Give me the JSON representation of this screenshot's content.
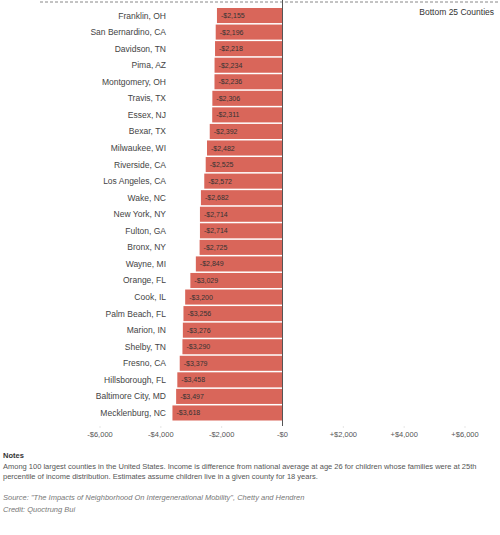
{
  "chart_data": {
    "type": "bar",
    "orientation": "horizontal",
    "title": "Bottom 25 Counties",
    "categories": [
      "Franklin, OH",
      "San Bernardino, CA",
      "Davidson, TN",
      "Pima, AZ",
      "Montgomery, OH",
      "Travis, TX",
      "Essex, NJ",
      "Bexar, TX",
      "Milwaukee, WI",
      "Riverside, CA",
      "Los Angeles, CA",
      "Wake, NC",
      "New York, NY",
      "Fulton, GA",
      "Bronx, NY",
      "Wayne, MI",
      "Orange, FL",
      "Cook, IL",
      "Palm Beach, FL",
      "Marion, IN",
      "Shelby, TN",
      "Fresno, CA",
      "Hillsborough, FL",
      "Baltimore City, MD",
      "Mecklenburg, NC"
    ],
    "values": [
      -2155,
      -2196,
      -2218,
      -2234,
      -2236,
      -2306,
      -2311,
      -2392,
      -2482,
      -2525,
      -2572,
      -2682,
      -2714,
      -2714,
      -2725,
      -2849,
      -3029,
      -3200,
      -3256,
      -3276,
      -3290,
      -3379,
      -3458,
      -3497,
      -3618
    ],
    "value_labels": [
      "-$2,155",
      "-$2,196",
      "-$2,218",
      "-$2,234",
      "-$2,236",
      "-$2,306",
      "-$2,311",
      "-$2,392",
      "-$2,482",
      "-$2,525",
      "-$2,572",
      "-$2,682",
      "-$2,714",
      "-$2,714",
      "-$2,725",
      "-$2,849",
      "-$3,029",
      "-$3,200",
      "-$3,256",
      "-$3,276",
      "-$3,290",
      "-$3,379",
      "-$3,458",
      "-$3,497",
      "-$3,618"
    ],
    "data_labels": true,
    "color": "#d9665a",
    "xlim": [
      -6000,
      6000
    ],
    "xticks": [
      {
        "value": -6000,
        "label": "-$6,000"
      },
      {
        "value": -4000,
        "label": "-$4,000"
      },
      {
        "value": -2000,
        "label": "-$2,000"
      },
      {
        "value": 0,
        "label": "-$0"
      },
      {
        "value": 2000,
        "label": "+$2,000"
      },
      {
        "value": 4000,
        "label": "+$4,000"
      },
      {
        "value": 6000,
        "label": "+$6,000"
      }
    ],
    "grid": false,
    "annotations": [
      "Notes",
      "Among 100 largest counties in the United States. Income is difference from national average at age 26 for children whose families were at 25th percentile of income distribution. Estimates assume children live in a given county for 18 years.",
      "Source: \"The Impacts of Neighborhood On Intergenerational Mobility\", Chetty and Hendren",
      "Credit: Quoctrung Bui"
    ]
  }
}
